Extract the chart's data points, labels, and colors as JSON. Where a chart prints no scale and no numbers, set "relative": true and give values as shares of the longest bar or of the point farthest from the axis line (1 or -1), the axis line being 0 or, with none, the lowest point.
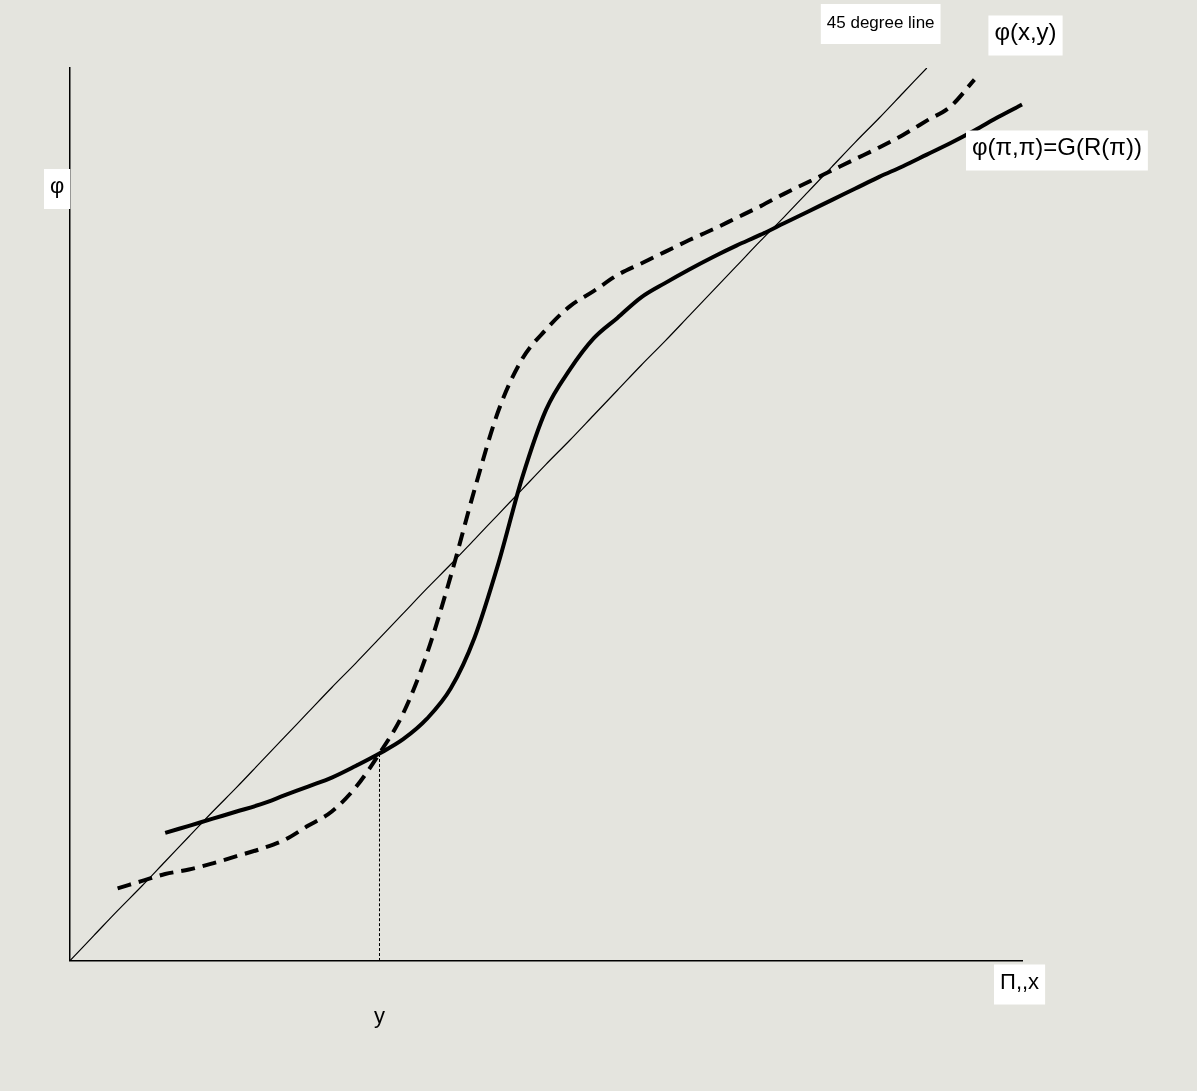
{
  "chart_data": {
    "type": "line",
    "relative": true,
    "xlabel": "Π,,x",
    "ylabel": "φ",
    "grid": false,
    "legend": false,
    "marker": "none",
    "categories": [
      null,
      null,
      null,
      null,
      null,
      null,
      null,
      null,
      null,
      null,
      null,
      null,
      null,
      null,
      null,
      null,
      null,
      null,
      null,
      null,
      null,
      null,
      null,
      null,
      null,
      null,
      null,
      null,
      null,
      null,
      null,
      null,
      null,
      null,
      null,
      null,
      null,
      null,
      null,
      null,
      null
    ],
    "series": [
      {
        "name": "45 degree line",
        "color": "#000000",
        "line_style": "solid",
        "values": [
          0,
          0.028,
          0.056,
          0.083,
          0.111,
          0.139,
          0.167,
          0.194,
          0.222,
          0.25,
          0.278,
          0.306,
          0.333,
          0.361,
          0.389,
          0.417,
          0.444,
          0.472,
          0.5,
          0.528,
          0.556,
          0.583,
          0.611,
          0.639,
          0.667,
          0.694,
          0.722,
          0.75,
          0.778,
          0.806,
          0.833,
          0.861,
          0.889,
          0.917,
          0.944,
          0.972,
          1,
          null,
          null,
          null,
          null
        ]
      },
      {
        "name": "φ(x,y)",
        "color": "#000000",
        "line_style": "dashed",
        "values": [
          null,
          null,
          0.081,
          0.089,
          0.097,
          0.102,
          0.109,
          0.117,
          0.125,
          0.135,
          0.151,
          0.167,
          0.194,
          0.232,
          0.277,
          0.344,
          0.431,
          0.528,
          0.616,
          0.674,
          0.707,
          0.733,
          0.75,
          0.768,
          0.781,
          0.794,
          0.807,
          0.819,
          0.832,
          0.845,
          0.859,
          0.872,
          0.885,
          0.898,
          0.911,
          0.925,
          0.941,
          0.957,
          0.987,
          null,
          null
        ]
      },
      {
        "name": "φ(π,π)=G(R(π))",
        "color": "#000000",
        "line_style": "solid",
        "values": [
          null,
          null,
          null,
          null,
          0.143,
          0.151,
          0.159,
          0.167,
          0.175,
          0.185,
          0.195,
          0.205,
          0.218,
          0.232,
          0.248,
          0.271,
          0.305,
          0.362,
          0.445,
          0.541,
          0.617,
          0.662,
          0.697,
          0.72,
          0.743,
          0.759,
          0.774,
          0.788,
          0.801,
          0.813,
          0.826,
          0.839,
          0.852,
          0.865,
          0.878,
          0.89,
          0.903,
          0.916,
          0.93,
          0.945,
          0.959
        ]
      }
    ],
    "annotations": [
      "y"
    ]
  }
}
